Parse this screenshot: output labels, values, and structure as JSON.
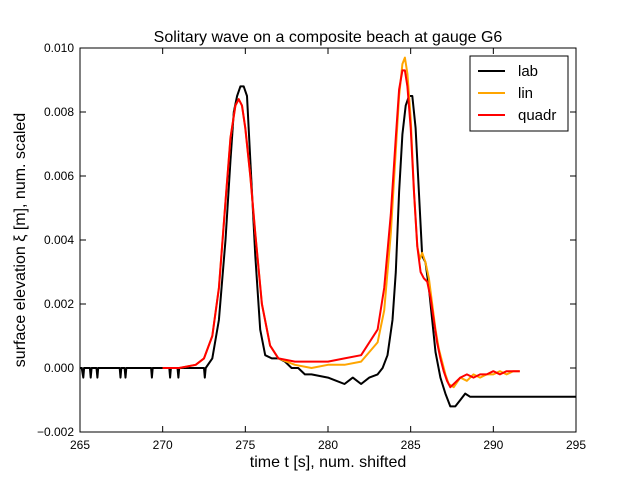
{
  "chart_data": {
    "type": "line",
    "title": "Solitary wave on a composite beach at gauge G6",
    "xlabel": "time  t [s], num. shifted",
    "ylabel": "surface elevation ξ [m], num. scaled",
    "xlim": [
      265,
      295
    ],
    "ylim": [
      -0.002,
      0.01
    ],
    "xticks": [
      265,
      270,
      275,
      280,
      285,
      290,
      295
    ],
    "xtick_labels": [
      "265",
      "270",
      "275",
      "280",
      "285",
      "290",
      "295"
    ],
    "yticks": [
      -0.002,
      0.0,
      0.002,
      0.004,
      0.006,
      0.008,
      0.01
    ],
    "ytick_labels": [
      "−0.002",
      "0.000",
      "0.002",
      "0.004",
      "0.006",
      "0.008",
      "0.010"
    ],
    "grid": false,
    "legend_position": "top-right",
    "series": [
      {
        "name": "lab",
        "color": "#000000",
        "x": [
          265.0,
          265.1,
          265.2,
          265.25,
          265.3,
          265.6,
          265.65,
          265.7,
          266.0,
          266.05,
          266.1,
          267.4,
          267.45,
          267.5,
          267.7,
          267.75,
          267.8,
          269.3,
          269.35,
          269.4,
          270.4,
          270.45,
          270.5,
          270.9,
          270.95,
          271.0,
          272.5,
          272.55,
          272.6,
          273.0,
          273.4,
          273.8,
          274.1,
          274.3,
          274.5,
          274.7,
          274.9,
          275.1,
          275.3,
          275.6,
          275.9,
          276.2,
          276.6,
          277.0,
          277.4,
          277.8,
          278.2,
          278.6,
          279.0,
          280.0,
          281.0,
          281.5,
          282.0,
          282.5,
          283.0,
          283.3,
          283.6,
          283.9,
          284.1,
          284.3,
          284.5,
          284.7,
          284.9,
          285.1,
          285.3,
          285.5,
          285.7,
          285.9,
          286.1,
          286.3,
          286.5,
          286.8,
          287.1,
          287.4,
          287.7,
          288.0,
          288.3,
          288.6,
          289.0,
          289.5,
          290.0,
          291.0,
          292.0,
          293.0,
          294.0,
          295.0
        ],
        "y": [
          0.0,
          0.0,
          -0.0003,
          0.0,
          0.0,
          0.0,
          -0.0003,
          0.0,
          0.0,
          -0.0003,
          0.0,
          0.0,
          -0.0003,
          0.0,
          0.0,
          -0.0003,
          0.0,
          0.0,
          -0.0003,
          0.0,
          0.0,
          -0.0003,
          0.0,
          0.0,
          -0.0003,
          0.0,
          0.0,
          -0.0003,
          0.0,
          0.0003,
          0.0015,
          0.004,
          0.0065,
          0.008,
          0.0085,
          0.0088,
          0.0088,
          0.0085,
          0.0065,
          0.0035,
          0.0012,
          0.0004,
          0.0003,
          0.0003,
          0.0002,
          0.0,
          0.0,
          -0.0002,
          -0.0002,
          -0.0003,
          -0.0005,
          -0.0003,
          -0.0005,
          -0.0003,
          -0.0002,
          0.0,
          0.0004,
          0.0015,
          0.003,
          0.0055,
          0.0073,
          0.0082,
          0.0085,
          0.0085,
          0.0075,
          0.0055,
          0.0035,
          0.0033,
          0.0025,
          0.0015,
          0.0005,
          -0.0003,
          -0.0008,
          -0.0012,
          -0.0012,
          -0.001,
          -0.0008,
          -0.0009,
          -0.0009,
          -0.0009,
          -0.0009,
          -0.0009,
          -0.0009,
          -0.0009,
          -0.0009,
          -0.0009
        ]
      },
      {
        "name": "lin",
        "color": "#ffa500",
        "x": [
          270.0,
          271.0,
          272.0,
          272.5,
          273.0,
          273.4,
          273.8,
          274.1,
          274.4,
          274.6,
          274.8,
          275.0,
          275.3,
          275.6,
          276.0,
          276.5,
          277.0,
          278.0,
          279.0,
          280.0,
          281.0,
          282.0,
          283.0,
          283.4,
          283.8,
          284.1,
          284.3,
          284.5,
          284.65,
          284.8,
          285.0,
          285.2,
          285.4,
          285.55,
          285.7,
          285.9,
          286.1,
          286.3,
          286.5,
          286.7,
          286.9,
          287.1,
          287.3,
          287.6,
          288.0,
          288.4,
          288.8,
          289.2,
          289.6,
          290.0,
          290.4,
          290.8,
          291.2,
          291.6
        ],
        "y": [
          0.0,
          0.0,
          0.0001,
          0.0003,
          0.001,
          0.0025,
          0.0052,
          0.0072,
          0.0082,
          0.0084,
          0.0082,
          0.0075,
          0.006,
          0.0042,
          0.002,
          0.0007,
          0.0003,
          0.0001,
          0.0,
          0.0001,
          0.0001,
          0.0002,
          0.0008,
          0.0018,
          0.0042,
          0.0068,
          0.0085,
          0.0095,
          0.0097,
          0.0092,
          0.0078,
          0.0055,
          0.0038,
          0.0034,
          0.0036,
          0.0033,
          0.0028,
          0.002,
          0.0012,
          0.0006,
          0.0002,
          -0.0002,
          -0.0005,
          -0.0006,
          -0.0003,
          -0.0004,
          -0.0002,
          -0.0003,
          -0.0002,
          -0.0002,
          -0.0001,
          -0.0002,
          -0.0001,
          -0.0001
        ]
      },
      {
        "name": "quadr",
        "color": "#ff0000",
        "x": [
          270.0,
          271.0,
          272.0,
          272.5,
          273.0,
          273.4,
          273.8,
          274.1,
          274.4,
          274.6,
          274.8,
          275.0,
          275.3,
          275.6,
          276.0,
          276.5,
          277.0,
          278.0,
          279.0,
          280.0,
          281.0,
          282.0,
          283.0,
          283.4,
          283.8,
          284.1,
          284.3,
          284.5,
          284.65,
          284.8,
          285.0,
          285.2,
          285.4,
          285.6,
          285.8,
          286.0,
          286.2,
          286.4,
          286.6,
          286.8,
          287.0,
          287.2,
          287.4,
          287.6,
          288.0,
          288.4,
          288.8,
          289.2,
          289.6,
          290.0,
          290.4,
          290.8,
          291.2,
          291.6
        ],
        "y": [
          0.0,
          0.0,
          0.0001,
          0.0003,
          0.001,
          0.0025,
          0.0052,
          0.0072,
          0.0082,
          0.0084,
          0.0082,
          0.0075,
          0.006,
          0.0042,
          0.002,
          0.0007,
          0.0003,
          0.0002,
          0.0002,
          0.0002,
          0.0003,
          0.0004,
          0.0012,
          0.0025,
          0.0048,
          0.0072,
          0.0087,
          0.0093,
          0.0093,
          0.0088,
          0.0075,
          0.0055,
          0.0038,
          0.003,
          0.0028,
          0.0027,
          0.0022,
          0.0015,
          0.0008,
          0.0003,
          -0.0001,
          -0.0004,
          -0.0006,
          -0.0005,
          -0.0003,
          -0.0002,
          -0.0003,
          -0.0002,
          -0.0002,
          -0.0001,
          -0.0002,
          -0.0001,
          -0.0001,
          -0.0001
        ]
      }
    ]
  }
}
